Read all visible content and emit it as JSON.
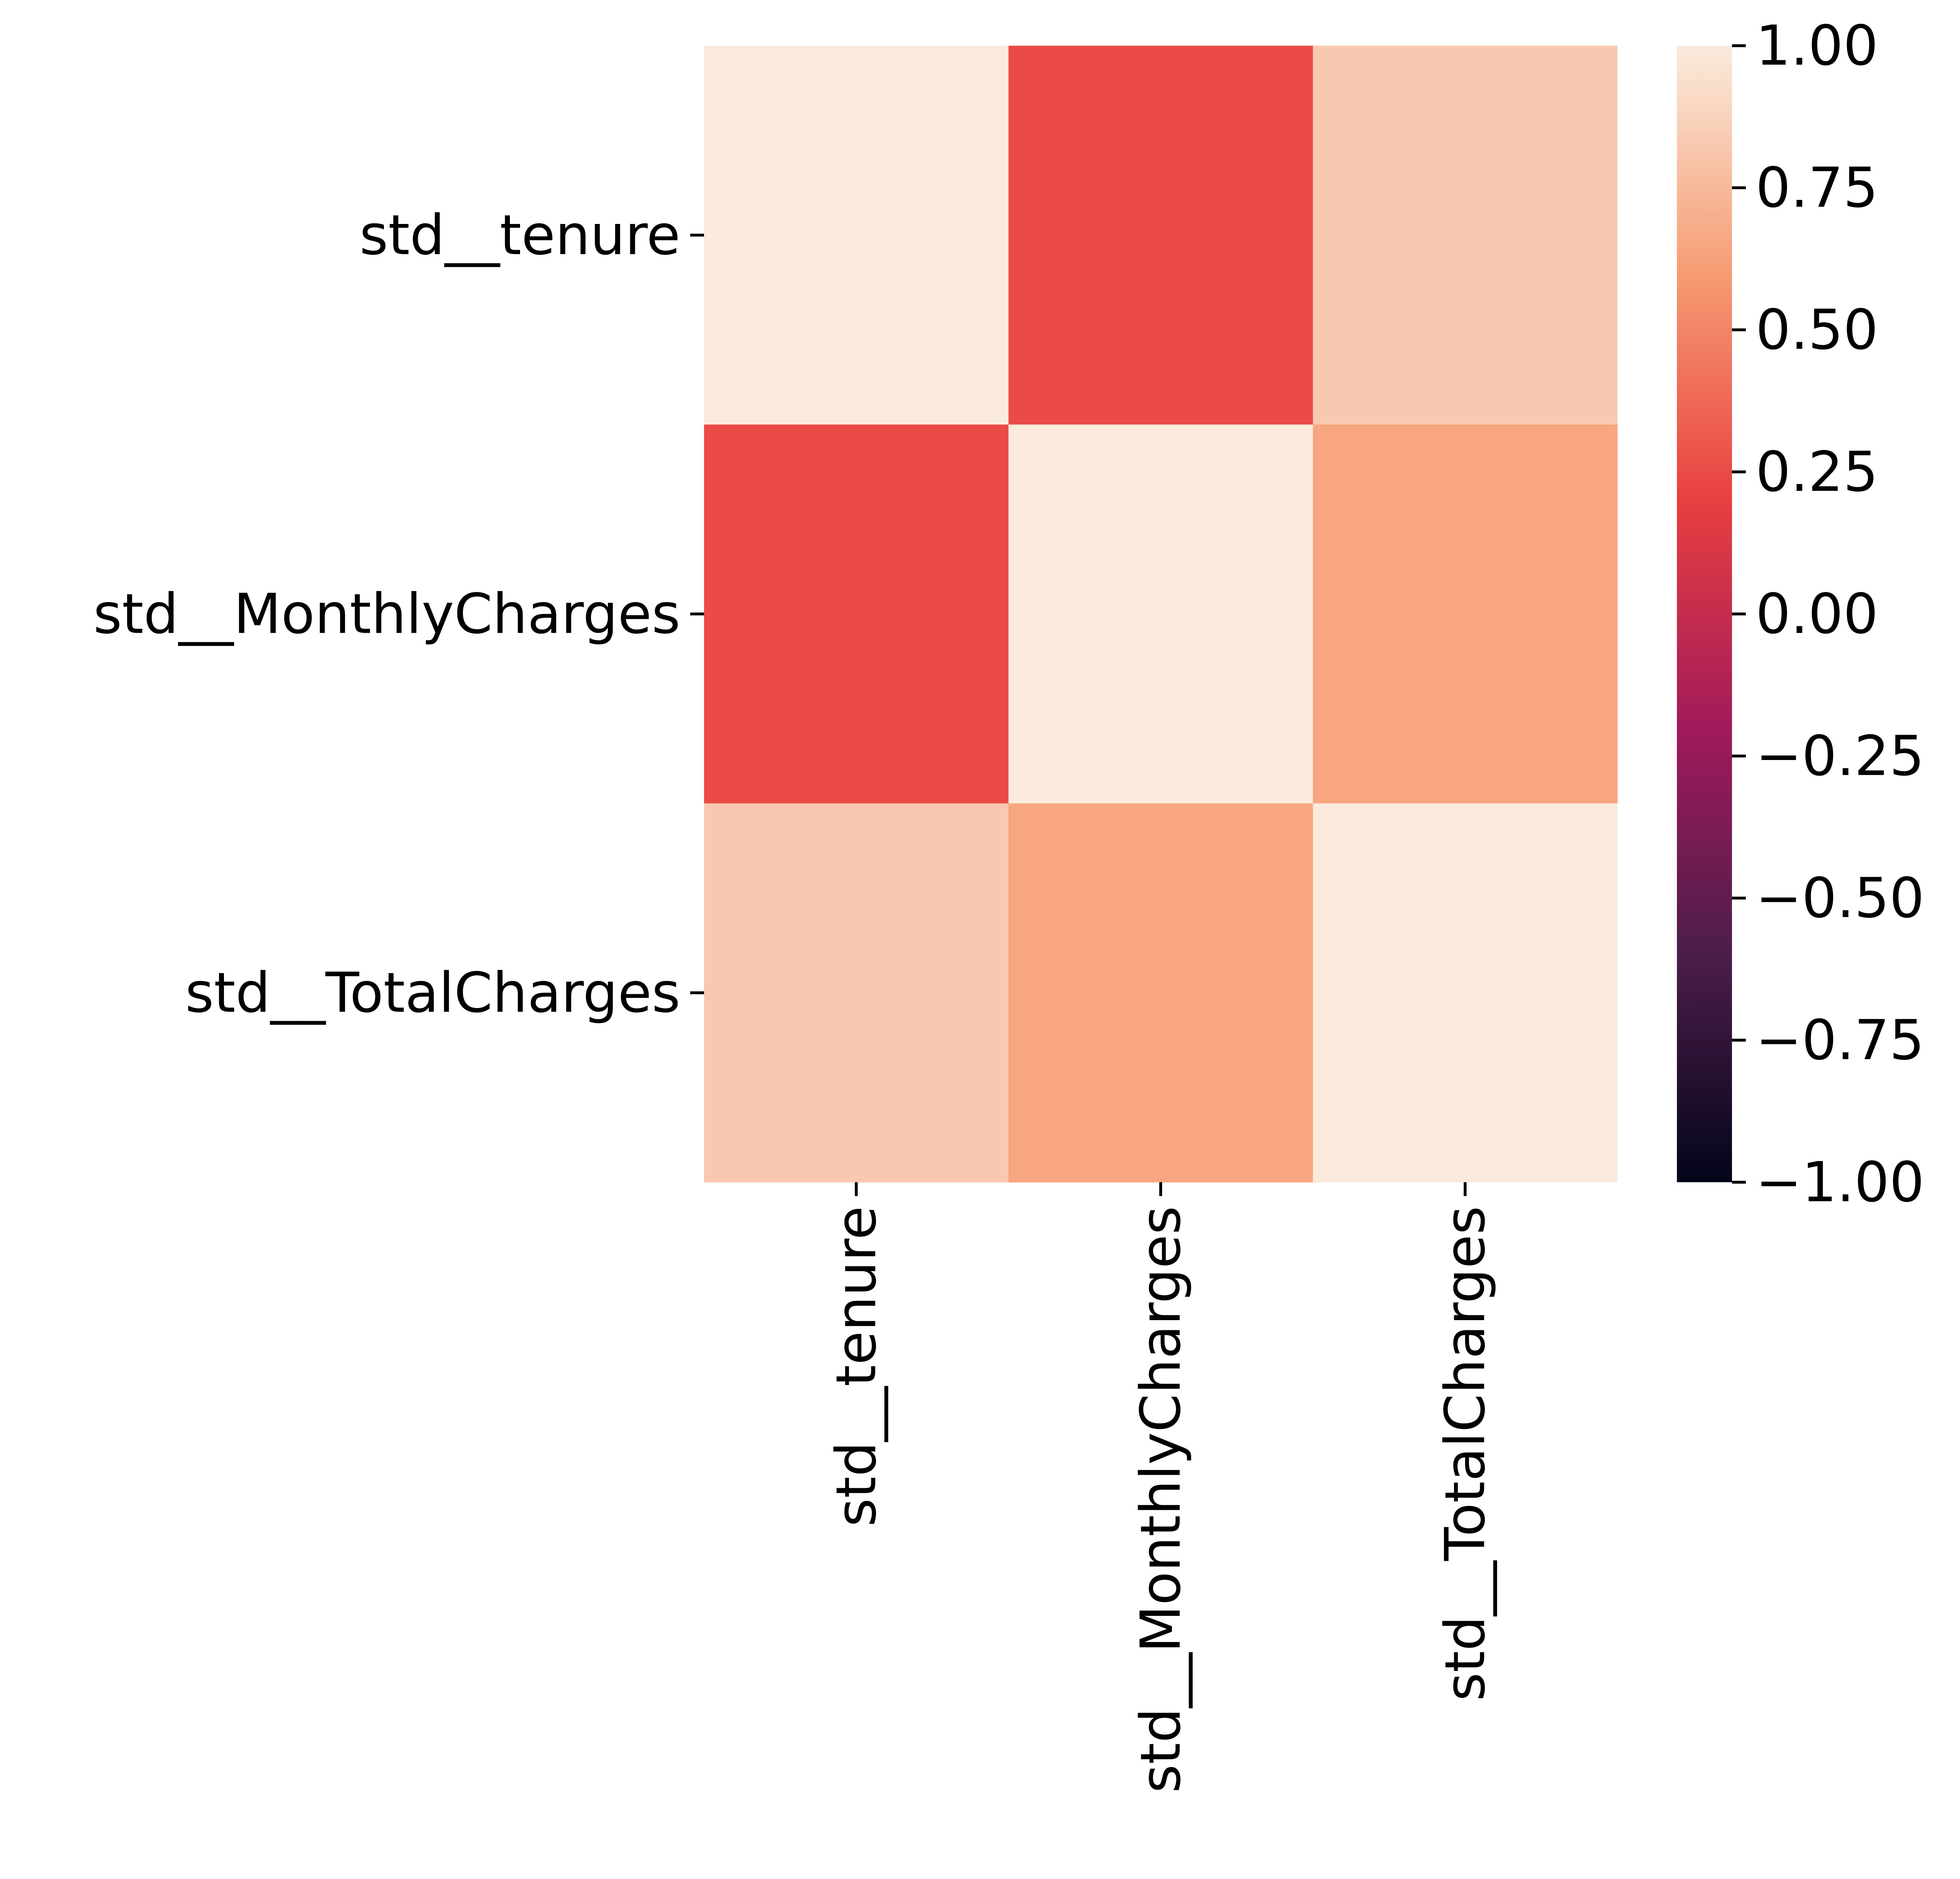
{
  "chart_data": {
    "type": "heatmap",
    "title": "",
    "xlabel": "",
    "ylabel": "",
    "rows": [
      "std__tenure",
      "std__MonthlyCharges",
      "std__TotalCharges"
    ],
    "columns": [
      "std__tenure",
      "std__MonthlyCharges",
      "std__TotalCharges"
    ],
    "values": [
      [
        1.0,
        0.25,
        0.83
      ],
      [
        0.25,
        1.0,
        0.65
      ],
      [
        0.83,
        0.65,
        1.0
      ]
    ],
    "annotated": false,
    "colorbar": {
      "min": -1.0,
      "max": 1.0,
      "ticks": [
        1.0,
        0.75,
        0.5,
        0.25,
        0.0,
        -0.25,
        -0.5,
        -0.75,
        -1.0
      ],
      "tick_labels": [
        "1.00",
        "0.75",
        "0.50",
        "0.25",
        "0.00",
        "−0.25",
        "−0.50",
        "−0.75",
        "−1.00"
      ],
      "colormap": "rocket",
      "colormap_stops": [
        "#03051a",
        "#4c1d4b",
        "#a11a5b",
        "#e83f3f",
        "#f69c73",
        "#faebdd"
      ]
    }
  }
}
